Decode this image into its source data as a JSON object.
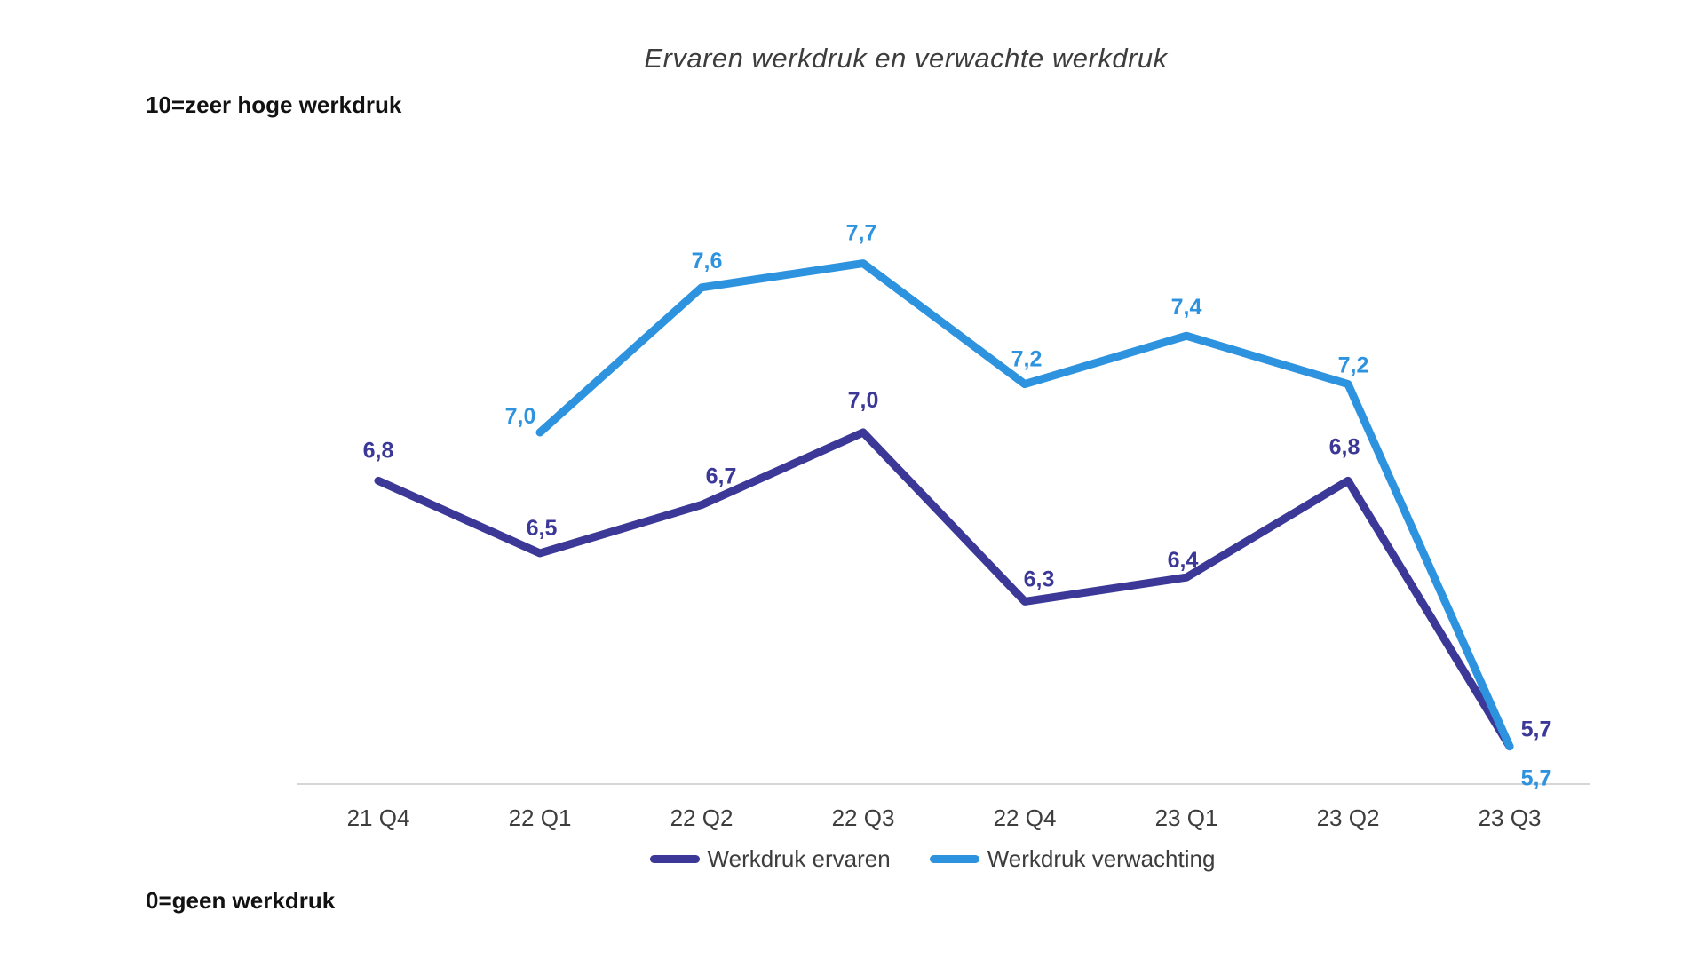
{
  "title": "Ervaren werkdruk en verwachte werkdruk",
  "y_axis_top_label": "10=zeer hoge werkdruk",
  "y_axis_bottom_label": "0=geen werkdruk",
  "colors": {
    "series_ervaren": "#3b3897",
    "series_verwachting": "#2e93df",
    "axis_line": "#d6d6d6",
    "text": "#3d3d3d"
  },
  "chart_data": {
    "type": "line",
    "categories": [
      "21 Q4",
      "22 Q1",
      "22 Q2",
      "22 Q3",
      "22 Q4",
      "23 Q1",
      "23 Q2",
      "23 Q3"
    ],
    "series": [
      {
        "name": "Werkdruk ervaren",
        "color": "#3b3897",
        "values": [
          6.8,
          6.5,
          6.7,
          7.0,
          6.3,
          6.4,
          6.8,
          5.7
        ],
        "labels": [
          "6,8",
          "6,5",
          "6,7",
          "7,0",
          "6,3",
          "6,4",
          "6,8",
          "5,7"
        ]
      },
      {
        "name": "Werkdruk verwachting",
        "color": "#2e93df",
        "values": [
          null,
          7.0,
          7.6,
          7.7,
          7.2,
          7.4,
          7.2,
          5.7
        ],
        "labels": [
          null,
          "7,0",
          "7,6",
          "7,7",
          "7,2",
          "7,4",
          "7,2",
          "5,7"
        ]
      }
    ],
    "ylim": [
      0,
      10
    ],
    "grid": false,
    "x_axis_line": true,
    "legend_position": "bottom",
    "data_labels": true
  }
}
